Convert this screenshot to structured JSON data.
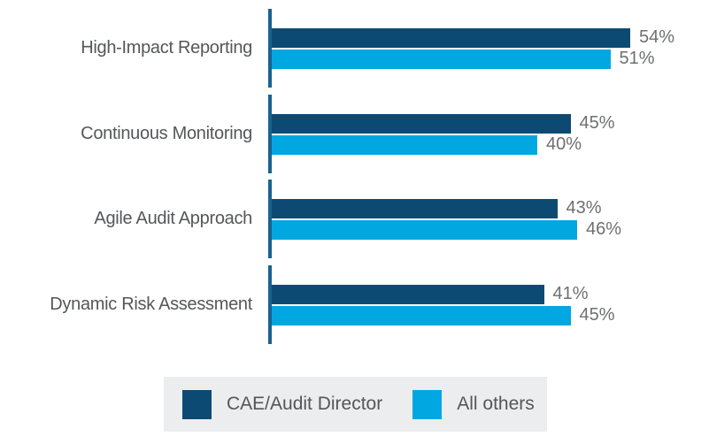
{
  "chart_data": {
    "type": "bar",
    "orientation": "horizontal",
    "title": "",
    "categories": [
      "High-Impact Reporting",
      "Continuous Monitoring",
      "Agile Audit Approach",
      "Dynamic Risk Assessment"
    ],
    "series": [
      {
        "name": "CAE/Audit Director",
        "color": "#0D4A73",
        "values": [
          54,
          45,
          43,
          41
        ]
      },
      {
        "name": "All others",
        "color": "#00A7E1",
        "values": [
          51,
          40,
          46,
          45
        ]
      }
    ],
    "value_suffix": "%",
    "value_labels": [
      [
        "54%",
        "51%"
      ],
      [
        "45%",
        "40%"
      ],
      [
        "43%",
        "46%"
      ],
      [
        "41%",
        "45%"
      ]
    ],
    "xlim": [
      0,
      64
    ],
    "grid": false,
    "axis_color": "#1A618F",
    "category_label_color": "#55565A",
    "value_label_color": "#6E6F72",
    "legend": {
      "position": "bottom",
      "background": "#ECEDEE",
      "text_color": "#55565A",
      "items": [
        "CAE/Audit Director",
        "All others"
      ]
    }
  }
}
